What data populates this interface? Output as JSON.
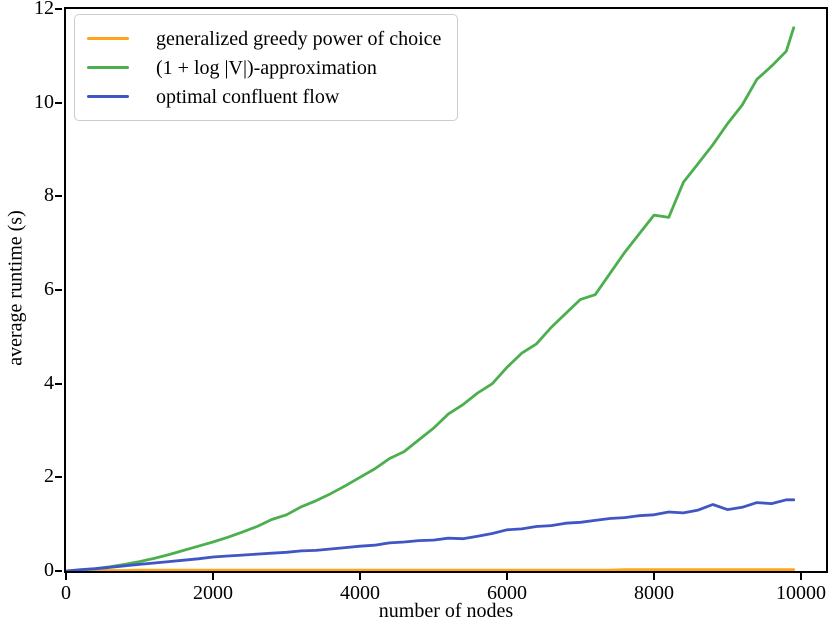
{
  "chart_data": {
    "type": "line",
    "title": "",
    "xlabel": "number of nodes",
    "ylabel": "average runtime (s)",
    "xlim": [
      0,
      10340
    ],
    "ylim": [
      0,
      12
    ],
    "x_ticks": [
      0,
      2000,
      4000,
      6000,
      8000,
      10000
    ],
    "y_ticks": [
      0,
      2,
      4,
      6,
      8,
      10,
      12
    ],
    "grid": false,
    "legend_position": "upper left",
    "axis_color": "#000000",
    "x": [
      0,
      200,
      400,
      600,
      800,
      1000,
      1200,
      1400,
      1600,
      1800,
      2000,
      2200,
      2400,
      2600,
      2800,
      3000,
      3200,
      3400,
      3600,
      3800,
      4000,
      4200,
      4400,
      4600,
      4800,
      5000,
      5200,
      5400,
      5600,
      5800,
      6000,
      6200,
      6400,
      6600,
      6800,
      7000,
      7200,
      7400,
      7600,
      7800,
      8000,
      8200,
      8400,
      8600,
      8800,
      9000,
      9200,
      9400,
      9600,
      9800,
      9900
    ],
    "series": [
      {
        "name": "generalized greedy power of choice",
        "color": "#ffa41c",
        "values": [
          0,
          0.01,
          0.01,
          0.01,
          0.01,
          0.02,
          0.02,
          0.02,
          0.02,
          0.02,
          0.02,
          0.02,
          0.02,
          0.02,
          0.02,
          0.02,
          0.02,
          0.02,
          0.02,
          0.02,
          0.02,
          0.02,
          0.02,
          0.02,
          0.02,
          0.02,
          0.02,
          0.02,
          0.02,
          0.02,
          0.02,
          0.02,
          0.02,
          0.02,
          0.02,
          0.02,
          0.02,
          0.02,
          0.03,
          0.03,
          0.03,
          0.03,
          0.03,
          0.03,
          0.03,
          0.03,
          0.03,
          0.03,
          0.03,
          0.03,
          0.03
        ]
      },
      {
        "name": "(1 + log |V|)-approximation",
        "color": "#4caf4e",
        "values": [
          0,
          0.02,
          0.05,
          0.09,
          0.14,
          0.2,
          0.27,
          0.35,
          0.44,
          0.53,
          0.62,
          0.72,
          0.83,
          0.95,
          1.1,
          1.2,
          1.37,
          1.5,
          1.65,
          1.82,
          2.0,
          2.18,
          2.4,
          2.55,
          2.8,
          3.05,
          3.35,
          3.55,
          3.8,
          4.0,
          4.35,
          4.65,
          4.85,
          5.2,
          5.5,
          5.8,
          5.9,
          6.35,
          6.8,
          7.2,
          7.6,
          7.55,
          8.3,
          8.7,
          9.1,
          9.55,
          9.95,
          10.5,
          10.78,
          11.1,
          11.6
        ]
      },
      {
        "name": "optimal confluent flow",
        "color": "#4156c5",
        "values": [
          0,
          0.03,
          0.05,
          0.08,
          0.11,
          0.14,
          0.17,
          0.2,
          0.23,
          0.26,
          0.3,
          0.32,
          0.34,
          0.36,
          0.38,
          0.4,
          0.43,
          0.44,
          0.47,
          0.5,
          0.53,
          0.55,
          0.6,
          0.62,
          0.65,
          0.66,
          0.7,
          0.69,
          0.74,
          0.8,
          0.88,
          0.9,
          0.95,
          0.97,
          1.02,
          1.04,
          1.08,
          1.12,
          1.14,
          1.18,
          1.2,
          1.26,
          1.24,
          1.3,
          1.42,
          1.31,
          1.36,
          1.46,
          1.44,
          1.52,
          1.52
        ]
      }
    ]
  }
}
